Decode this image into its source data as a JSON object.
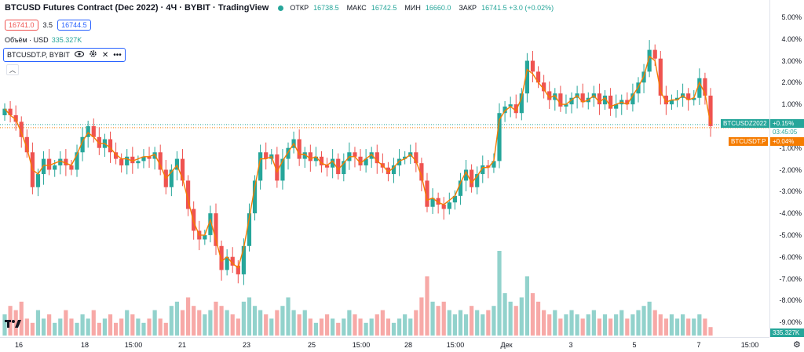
{
  "header": {
    "title": "BTCUSD Futures Contract (Dec 2022) · 4Ч · BYBIT · TradingView",
    "ohlc": [
      {
        "k": "ОТКР",
        "v": "16738.5"
      },
      {
        "k": "МАКС",
        "v": "16742.5"
      },
      {
        "k": "МИН",
        "v": "16660.0"
      },
      {
        "k": "ЗАКР",
        "v": "16741.5 +3.0 (+0.02%)"
      }
    ]
  },
  "spread": {
    "bid": "16741.0",
    "spread": "3.5",
    "ask": "16744.5"
  },
  "volume_legend": {
    "label": "Объём · USD",
    "value": "335.327K"
  },
  "compare": {
    "label": "BTCUSDT.P, BYBIT"
  },
  "price_labels": [
    {
      "name": "BTCUSDZ2022",
      "value": "+0.15%",
      "time": "03:45:05",
      "color": "#26a69a"
    },
    {
      "name": "BTCUSDT.P",
      "value": "+0.04%",
      "color": "#f57c00"
    }
  ],
  "volume_axis_label": "335.327K",
  "colors": {
    "up": "#26a69a",
    "down": "#ef5350",
    "compare_line": "#f57c00",
    "vol_up": "#92d2cc",
    "vol_down": "#f7a9a7"
  },
  "chart_data": {
    "type": "candlestick",
    "y_axis_unit": "%",
    "ylim": [
      -9.5,
      5.5
    ],
    "yticks": [
      "5.00%",
      "4.00%",
      "3.00%",
      "2.00%",
      "1.00%",
      "-1.00%",
      "-2.00%",
      "-3.00%",
      "-4.00%",
      "-5.00%",
      "-6.00%",
      "-7.00%",
      "-8.00%",
      "-9.00%"
    ],
    "xticks": [
      "16",
      "18",
      "15:00",
      "21",
      "23",
      "25",
      "15:00",
      "28",
      "15:00",
      "Дек",
      "3",
      "5",
      "7",
      "15:00"
    ],
    "close_pct": [
      0.8,
      0.5,
      0.2,
      -0.5,
      -1.2,
      -2.8,
      -2.2,
      -1.5,
      -2.0,
      -1.8,
      -1.5,
      -1.8,
      -2.0,
      -1.2,
      -0.5,
      0.0,
      -0.5,
      -1.0,
      -0.6,
      -1.2,
      -1.5,
      -1.8,
      -1.4,
      -1.7,
      -1.6,
      -1.4,
      -1.5,
      -1.2,
      -2.0,
      -2.8,
      -2.0,
      -1.5,
      -2.5,
      -3.8,
      -4.8,
      -5.2,
      -5.0,
      -4.0,
      -5.5,
      -6.6,
      -6.0,
      -6.4,
      -6.8,
      -5.5,
      -4.0,
      -2.5,
      -1.2,
      -1.5,
      -1.3,
      -2.5,
      -1.5,
      -1.0,
      -0.6,
      -1.5,
      -1.2,
      -1.6,
      -1.4,
      -1.8,
      -1.9,
      -1.5,
      -2.2,
      -1.6,
      -1.2,
      -1.4,
      -1.8,
      -1.5,
      -1.2,
      -1.7,
      -1.9,
      -2.2,
      -1.8,
      -1.5,
      -1.4,
      -1.2,
      -1.7,
      -2.5,
      -3.7,
      -3.3,
      -3.6,
      -3.8,
      -3.5,
      -3.2,
      -2.5,
      -2.0,
      -2.8,
      -2.2,
      -1.8,
      -1.9,
      -1.6,
      0.6,
      0.9,
      1.0,
      0.6,
      1.5,
      3.0,
      2.5,
      2.0,
      1.6,
      1.2,
      1.5,
      0.9,
      1.0,
      1.3,
      1.5,
      1.1,
      1.3,
      1.5,
      1.0,
      1.4,
      0.8,
      1.0,
      1.2,
      1.0,
      1.5,
      2.0,
      2.5,
      3.5,
      3.1,
      1.4,
      1.0,
      1.2,
      1.3,
      1.5,
      1.2,
      1.3,
      2.2,
      1.4,
      0.0
    ],
    "compare_line_pct": [
      0.8,
      0.5,
      0.3,
      -0.3,
      -1.0,
      -2.0,
      -2.2,
      -1.8,
      -1.8,
      -1.7,
      -1.6,
      -1.7,
      -1.8,
      -1.3,
      -0.7,
      -0.3,
      -0.5,
      -0.8,
      -0.8,
      -1.0,
      -1.3,
      -1.5,
      -1.5,
      -1.6,
      -1.5,
      -1.4,
      -1.4,
      -1.3,
      -1.8,
      -2.4,
      -2.1,
      -1.8,
      -2.4,
      -3.4,
      -4.4,
      -5.0,
      -5.0,
      -4.3,
      -5.2,
      -6.2,
      -6.0,
      -6.3,
      -6.5,
      -5.6,
      -4.2,
      -2.8,
      -1.5,
      -1.5,
      -1.4,
      -2.1,
      -1.6,
      -1.2,
      -0.8,
      -1.3,
      -1.3,
      -1.5,
      -1.4,
      -1.7,
      -1.8,
      -1.6,
      -2.0,
      -1.7,
      -1.4,
      -1.4,
      -1.7,
      -1.5,
      -1.3,
      -1.6,
      -1.8,
      -2.1,
      -1.9,
      -1.6,
      -1.5,
      -1.3,
      -1.6,
      -2.3,
      -3.4,
      -3.3,
      -3.5,
      -3.6,
      -3.4,
      -3.2,
      -2.6,
      -2.1,
      -2.6,
      -2.3,
      -1.9,
      -1.9,
      -1.6,
      0.3,
      0.7,
      0.9,
      0.7,
      1.3,
      2.6,
      2.4,
      2.0,
      1.7,
      1.3,
      1.4,
      1.0,
      1.0,
      1.2,
      1.4,
      1.1,
      1.2,
      1.4,
      1.1,
      1.3,
      0.9,
      1.0,
      1.1,
      1.0,
      1.4,
      1.8,
      2.3,
      3.2,
      3.0,
      1.6,
      1.1,
      1.2,
      1.2,
      1.4,
      1.2,
      1.3,
      2.0,
      1.5,
      0.1
    ],
    "volume": [
      0.25,
      0.35,
      0.3,
      0.4,
      0.2,
      0.15,
      0.3,
      0.2,
      0.25,
      0.15,
      0.2,
      0.3,
      0.2,
      0.15,
      0.25,
      0.2,
      0.3,
      0.15,
      0.2,
      0.25,
      0.15,
      0.2,
      0.3,
      0.25,
      0.2,
      0.15,
      0.2,
      0.3,
      0.2,
      0.15,
      0.35,
      0.4,
      0.3,
      0.45,
      0.35,
      0.3,
      0.25,
      0.3,
      0.4,
      0.35,
      0.3,
      0.25,
      0.2,
      0.4,
      0.45,
      0.35,
      0.3,
      0.25,
      0.2,
      0.3,
      0.35,
      0.45,
      0.3,
      0.25,
      0.3,
      0.2,
      0.15,
      0.2,
      0.25,
      0.2,
      0.15,
      0.2,
      0.3,
      0.25,
      0.2,
      0.15,
      0.2,
      0.25,
      0.3,
      0.2,
      0.15,
      0.2,
      0.25,
      0.2,
      0.3,
      0.45,
      0.7,
      0.4,
      0.35,
      0.4,
      0.3,
      0.25,
      0.3,
      0.25,
      0.35,
      0.3,
      0.25,
      0.3,
      0.35,
      1.0,
      0.5,
      0.4,
      0.35,
      0.45,
      0.7,
      0.5,
      0.4,
      0.3,
      0.25,
      0.3,
      0.2,
      0.25,
      0.3,
      0.25,
      0.2,
      0.25,
      0.3,
      0.2,
      0.25,
      0.2,
      0.25,
      0.3,
      0.2,
      0.25,
      0.3,
      0.35,
      0.4,
      0.3,
      0.25,
      0.2,
      0.25,
      0.2,
      0.25,
      0.2,
      0.2,
      0.25,
      0.2,
      0.1
    ],
    "vol_max": 1.0
  }
}
